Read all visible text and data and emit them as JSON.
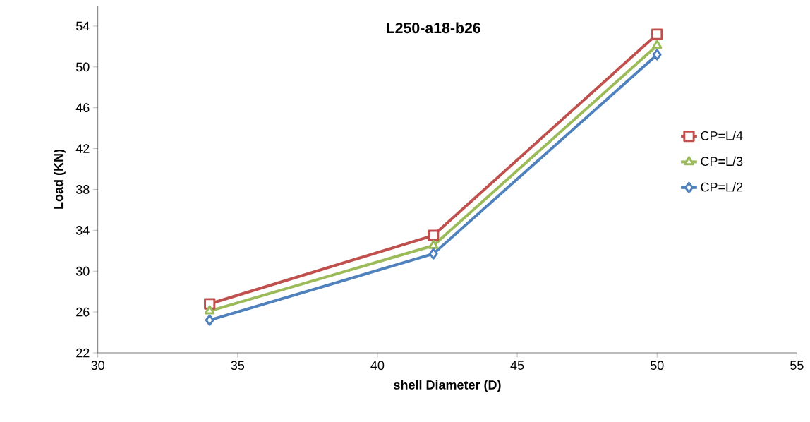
{
  "chart_data": {
    "type": "line",
    "title": "L250-a18-b26",
    "xlabel": "shell Diameter (D)",
    "ylabel": "Load (KN)",
    "x": [
      34,
      42,
      50
    ],
    "series": [
      {
        "name": "CP=L/4",
        "color": "#c0504d",
        "marker": "square",
        "values": [
          26.8,
          33.5,
          53.2
        ]
      },
      {
        "name": "CP=L/3",
        "color": "#9bbb59",
        "marker": "triangle",
        "values": [
          26.1,
          32.5,
          52.1
        ]
      },
      {
        "name": "CP=L/2",
        "color": "#4f81bd",
        "marker": "diamond",
        "values": [
          25.2,
          31.7,
          51.2
        ]
      }
    ],
    "xlim": [
      30,
      55
    ],
    "xticks": [
      30,
      35,
      40,
      45,
      50,
      55
    ],
    "ylim": [
      22,
      56
    ],
    "yticks": [
      22,
      26,
      30,
      34,
      38,
      42,
      46,
      50,
      54
    ],
    "grid": false,
    "legend": "right",
    "line_style": "solid"
  }
}
